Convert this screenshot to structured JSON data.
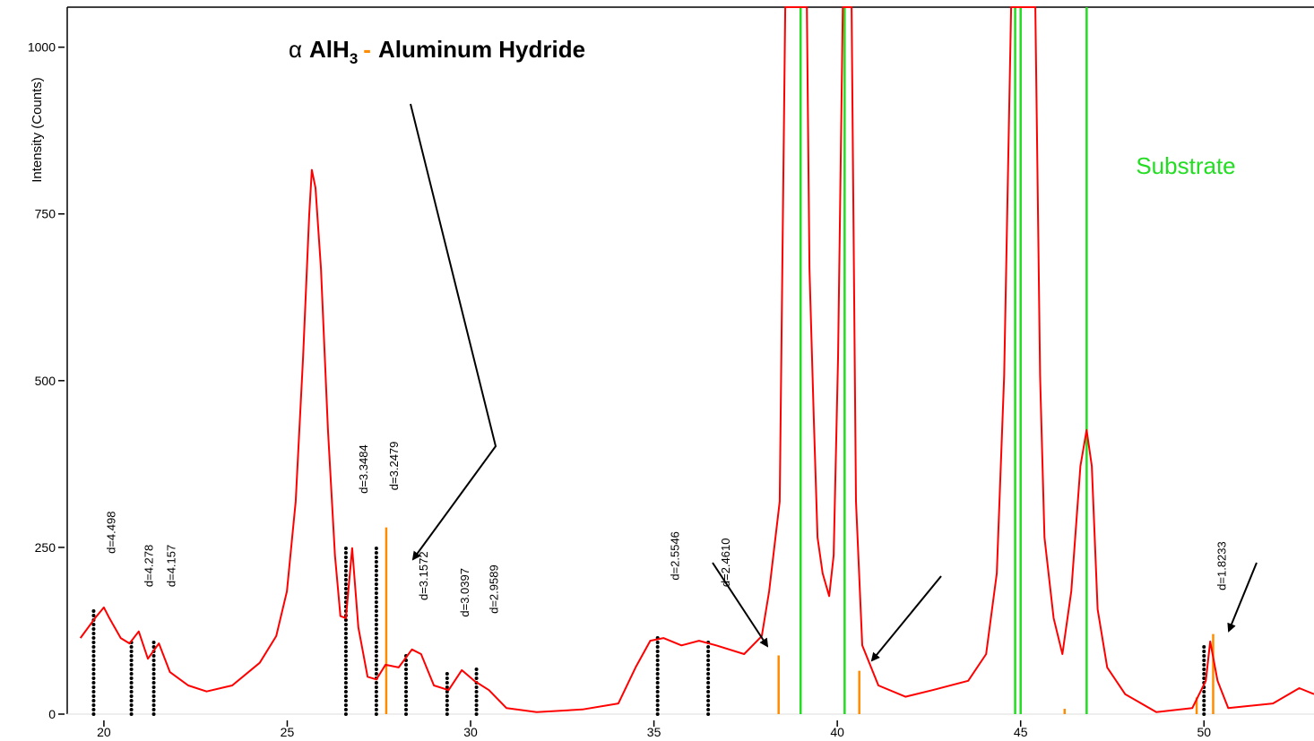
{
  "chart_data": {
    "type": "line",
    "title": {
      "symbol": "α",
      "formula": "AlH",
      "subscript": "3",
      "dash": "-",
      "name": "Aluminum Hydride"
    },
    "y_label": "Intensity (Counts)",
    "xlim": [
      19,
      53
    ],
    "ylim": [
      0,
      1060
    ],
    "xticks": [
      20,
      25,
      30,
      35,
      40,
      45,
      50
    ],
    "yticks": [
      0,
      250,
      500,
      750,
      1000
    ],
    "series": [
      {
        "color": "#ff0000",
        "x": [
          19.36,
          19.76,
          20.0,
          20.15,
          20.46,
          20.7,
          20.95,
          21.2,
          21.5,
          21.8,
          22.3,
          22.8,
          23.5,
          24.25,
          24.7,
          24.99,
          25.23,
          25.43,
          25.6,
          25.67,
          25.77,
          25.92,
          26.11,
          26.3,
          26.45,
          26.6,
          26.77,
          26.94,
          27.19,
          27.43,
          27.68,
          28.04,
          28.4,
          28.65,
          29.0,
          29.4,
          29.76,
          30.1,
          30.5,
          30.98,
          31.8,
          33.05,
          34.03,
          34.5,
          34.9,
          35.26,
          35.75,
          36.23,
          36.7,
          37.46,
          37.94,
          38.14,
          38.43,
          38.58,
          39.17,
          39.24,
          39.36,
          39.46,
          39.6,
          39.78,
          39.9,
          40.02,
          40.15,
          40.39,
          40.51,
          40.68,
          41.12,
          41.86,
          42.6,
          43.57,
          44.06,
          44.35,
          44.55,
          44.74,
          45.4,
          45.53,
          45.65,
          45.9,
          46.14,
          46.38,
          46.63,
          46.8,
          46.94,
          47.1,
          47.36,
          47.85,
          48.7,
          49.68,
          50.05,
          50.17,
          50.37,
          50.66,
          51.88,
          52.6,
          53.0
        ],
        "values": [
          114,
          144,
          160,
          144,
          114,
          106,
          124,
          83,
          106,
          63,
          43,
          34,
          43,
          77,
          117,
          184,
          319,
          534,
          749,
          816,
          789,
          668,
          426,
          238,
          147,
          144,
          249,
          130,
          56,
          52,
          74,
          70,
          97,
          90,
          43,
          36,
          66,
          50,
          36,
          9,
          3,
          7,
          16,
          70,
          110,
          114,
          103,
          110,
          103,
          90,
          117,
          184,
          319,
          1060,
          1060,
          668,
          440,
          265,
          211,
          177,
          238,
          534,
          1060,
          1060,
          319,
          103,
          43,
          26,
          36,
          50,
          90,
          211,
          507,
          1060,
          1060,
          507,
          265,
          144,
          90,
          184,
          372,
          426,
          372,
          157,
          70,
          30,
          3,
          9,
          50,
          109,
          50,
          9,
          16,
          39,
          30
        ]
      }
    ],
    "reference_sticks": {
      "color": "#000000",
      "x": [
        19.72,
        20.75,
        21.36,
        26.6,
        27.43,
        28.24,
        29.36,
        30.16,
        35.1,
        36.48,
        50.0
      ],
      "values": [
        160,
        110,
        110,
        250,
        255,
        90,
        65,
        70,
        120,
        110,
        105
      ],
      "labels": [
        "d=4.498",
        "d=4.278",
        "d=4.157",
        "d=3.3484",
        "d=3.2479",
        "d=3.1572",
        "d=3.0397",
        "d=2.9589",
        "d=2.5546",
        "d=2.4610",
        "d=1.8233"
      ]
    },
    "alh3_sticks": {
      "color": "#ff8c00",
      "x": [
        27.7,
        38.4,
        40.6,
        46.2,
        49.8,
        50.25
      ],
      "values": [
        280,
        88,
        65,
        8,
        25,
        120
      ]
    },
    "substrate_sticks": {
      "name": "Substrate",
      "color": "#22dd22",
      "x": [
        39.0,
        40.2,
        44.85,
        45.0,
        46.8
      ],
      "values": [
        1060,
        1060,
        1060,
        1060,
        1060
      ]
    }
  }
}
